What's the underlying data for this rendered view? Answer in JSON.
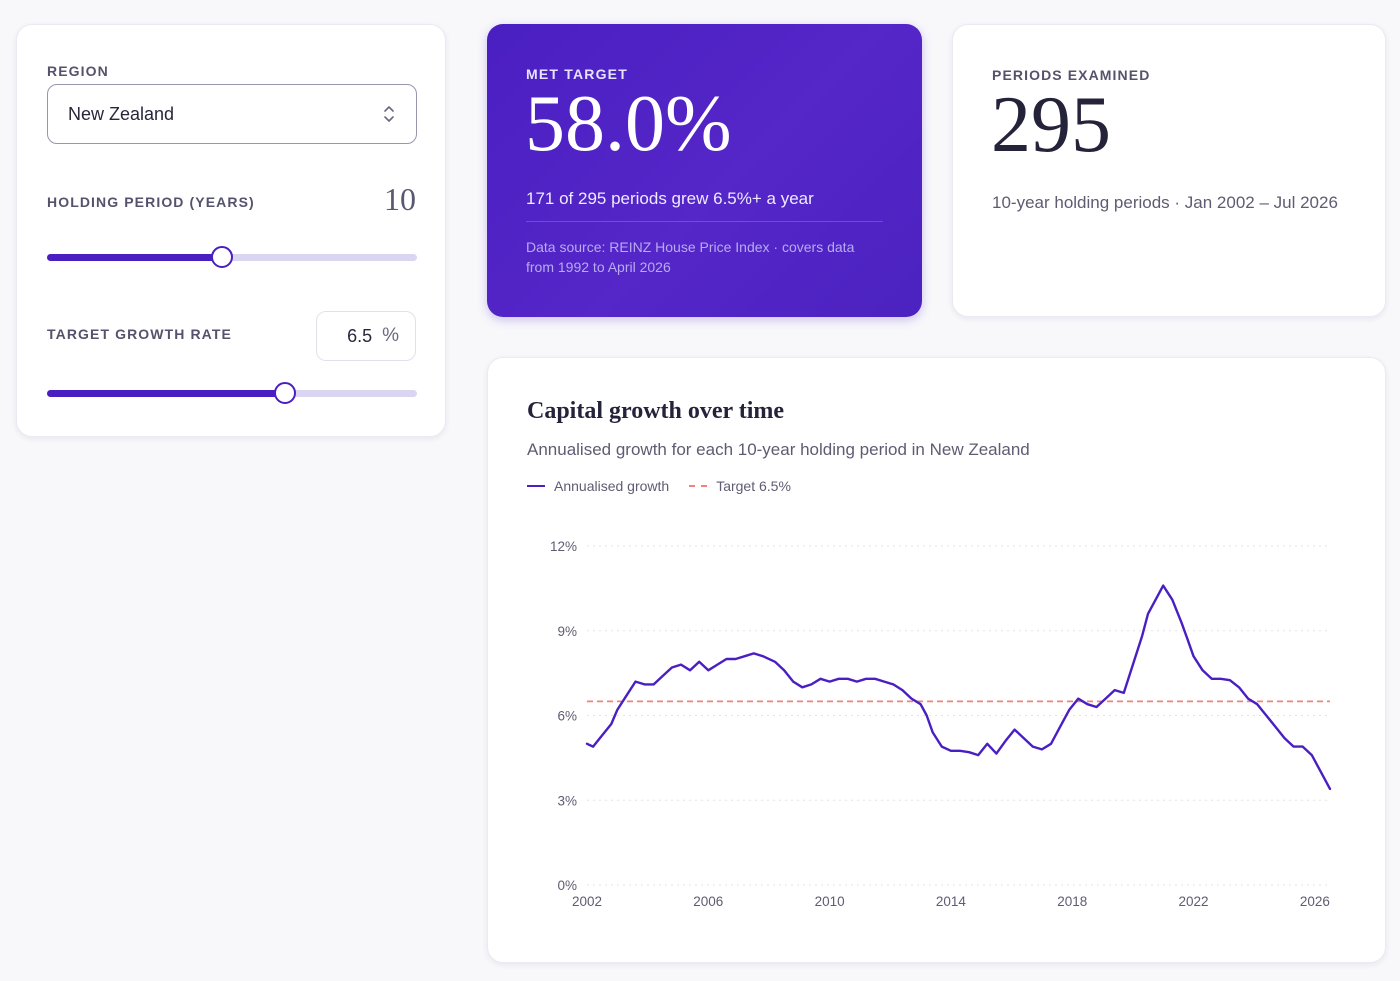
{
  "controls": {
    "region_label": "REGION",
    "region_value": "New Zealand",
    "holding_label": "HOLDING PERIOD (YEARS)",
    "holding_value": "10",
    "holding_slider_fraction": 0.474,
    "rate_label": "TARGET GROWTH RATE",
    "rate_value": "6.5",
    "rate_unit": "%",
    "rate_slider_fraction": 0.642
  },
  "met_target": {
    "label": "MET TARGET",
    "value": "58.0%",
    "summary": "171 of 295 periods grew 6.5%+ a year",
    "source": "Data source: REINZ House Price Index · covers data from 1992 to April 2026"
  },
  "periods": {
    "label": "PERIODS EXAMINED",
    "value": "295",
    "summary": "10-year holding periods · Jan 2002 – Jul 2026"
  },
  "colors": {
    "accent": "#4a1fc2",
    "target_line": "#f0847a"
  },
  "chart_data": {
    "type": "line",
    "title": "Capital growth over time",
    "subtitle": "Annualised growth for each 10-year holding period in New Zealand",
    "xlabel": "",
    "ylabel": "",
    "x_ticks": [
      "2002",
      "2006",
      "2010",
      "2014",
      "2018",
      "2022",
      "2026"
    ],
    "x_range": [
      2002,
      2026.5
    ],
    "y_ticks": [
      "12%",
      "9%",
      "6%",
      "3%",
      "0%"
    ],
    "y_tick_values": [
      12,
      9,
      6,
      3,
      0
    ],
    "ylim": [
      0,
      12
    ],
    "grid": true,
    "legend_position": "top-left",
    "series": [
      {
        "name": "Annualised growth",
        "x": [
          2002.0,
          2002.2,
          2002.5,
          2002.8,
          2003.0,
          2003.3,
          2003.6,
          2003.9,
          2004.2,
          2004.5,
          2004.8,
          2005.1,
          2005.4,
          2005.7,
          2006.0,
          2006.3,
          2006.6,
          2006.9,
          2007.2,
          2007.5,
          2007.8,
          2008.2,
          2008.5,
          2008.8,
          2009.1,
          2009.4,
          2009.7,
          2010.0,
          2010.3,
          2010.6,
          2010.9,
          2011.2,
          2011.5,
          2011.8,
          2012.1,
          2012.4,
          2012.7,
          2013.0,
          2013.2,
          2013.4,
          2013.7,
          2014.0,
          2014.3,
          2014.6,
          2014.9,
          2015.2,
          2015.5,
          2015.8,
          2016.1,
          2016.4,
          2016.7,
          2017.0,
          2017.3,
          2017.6,
          2017.9,
          2018.2,
          2018.5,
          2018.8,
          2019.1,
          2019.4,
          2019.7,
          2020.0,
          2020.3,
          2020.5,
          2020.8,
          2021.0,
          2021.3,
          2021.6,
          2021.8,
          2022.0,
          2022.3,
          2022.6,
          2022.9,
          2023.2,
          2023.5,
          2023.8,
          2024.1,
          2024.4,
          2024.7,
          2025.0,
          2025.3,
          2025.6,
          2025.9,
          2026.1,
          2026.3,
          2026.5
        ],
        "values": [
          5.0,
          4.9,
          5.3,
          5.7,
          6.2,
          6.7,
          7.2,
          7.1,
          7.1,
          7.4,
          7.7,
          7.8,
          7.6,
          7.9,
          7.6,
          7.8,
          8.0,
          8.0,
          8.1,
          8.2,
          8.1,
          7.9,
          7.6,
          7.2,
          7.0,
          7.1,
          7.3,
          7.2,
          7.3,
          7.3,
          7.2,
          7.3,
          7.3,
          7.2,
          7.1,
          6.9,
          6.6,
          6.4,
          6.0,
          5.4,
          4.9,
          4.75,
          4.75,
          4.7,
          4.6,
          5.0,
          4.65,
          5.1,
          5.5,
          5.2,
          4.9,
          4.8,
          5.0,
          5.6,
          6.2,
          6.6,
          6.4,
          6.3,
          6.6,
          6.9,
          6.8,
          7.8,
          8.8,
          9.6,
          10.2,
          10.6,
          10.1,
          9.3,
          8.7,
          8.1,
          7.6,
          7.3,
          7.3,
          7.25,
          7.0,
          6.6,
          6.4,
          6.0,
          5.6,
          5.2,
          4.9,
          4.9,
          4.6,
          4.2,
          3.8,
          3.4
        ]
      },
      {
        "name": "Target 6.5%",
        "x": [
          2002,
          2026.5
        ],
        "values": [
          6.5,
          6.5
        ]
      }
    ]
  }
}
